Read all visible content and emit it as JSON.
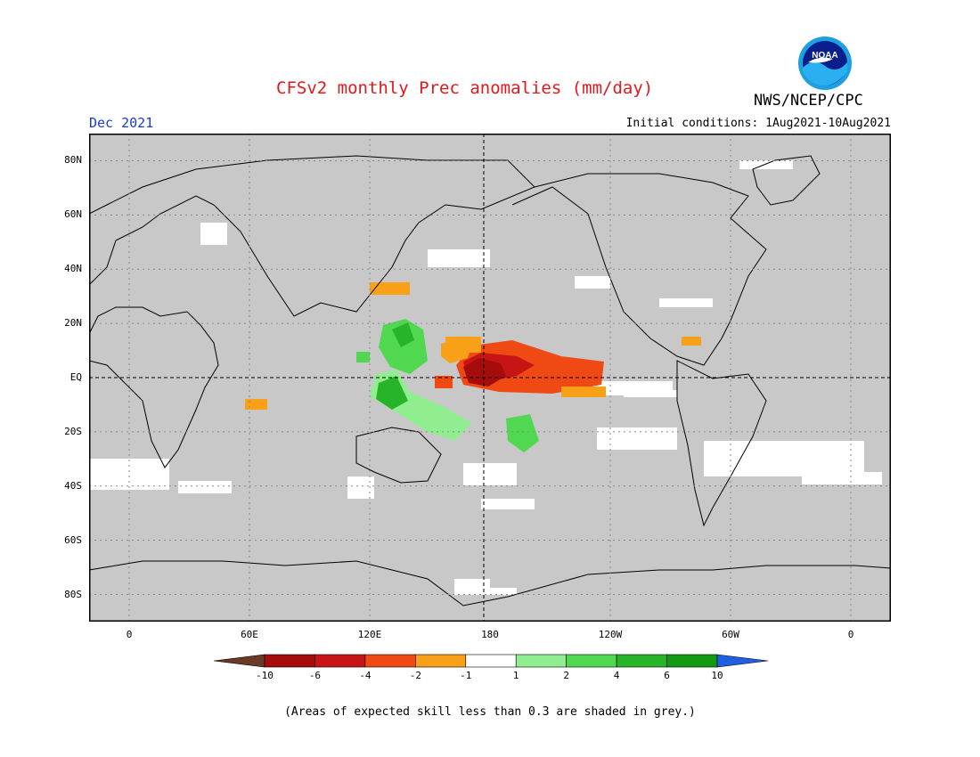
{
  "header": {
    "title": "CFSv2 monthly Prec anomalies (mm/day)",
    "org": "NWS/NCEP/CPC",
    "logo_text": "NOAA",
    "month": "Dec 2021",
    "initial_conditions": "Initial conditions: 1Aug2021-10Aug2021"
  },
  "map": {
    "lat_labels": [
      "80N",
      "60N",
      "40N",
      "20N",
      "EQ",
      "20S",
      "40S",
      "60S",
      "80S"
    ],
    "lat_values": [
      80,
      60,
      40,
      20,
      0,
      -20,
      -40,
      -60,
      -80
    ],
    "lon_labels": [
      "0",
      "60E",
      "120E",
      "180",
      "120W",
      "60W",
      "0"
    ],
    "lon_values": [
      0,
      60,
      120,
      180,
      240,
      300,
      360
    ],
    "lon_range": [
      -20,
      380
    ],
    "lat_range": [
      -90,
      90
    ],
    "land_color": "#c8c8c8",
    "gridlines": "dotted",
    "reference_lines": [
      "equator",
      "dateline"
    ]
  },
  "colorbar": {
    "labels": [
      "-10",
      "-6",
      "-4",
      "-2",
      "-1",
      "1",
      "2",
      "4",
      "6",
      "10"
    ],
    "colors": [
      "#6b3a26",
      "#a60c0c",
      "#c81414",
      "#f04a14",
      "#f7a018",
      "#ffffff",
      "#90ee90",
      "#50d850",
      "#28b428",
      "#129a12",
      "#2060e0"
    ]
  },
  "note": "(Areas of expected skill less than 0.3 are shaded in grey.)"
}
